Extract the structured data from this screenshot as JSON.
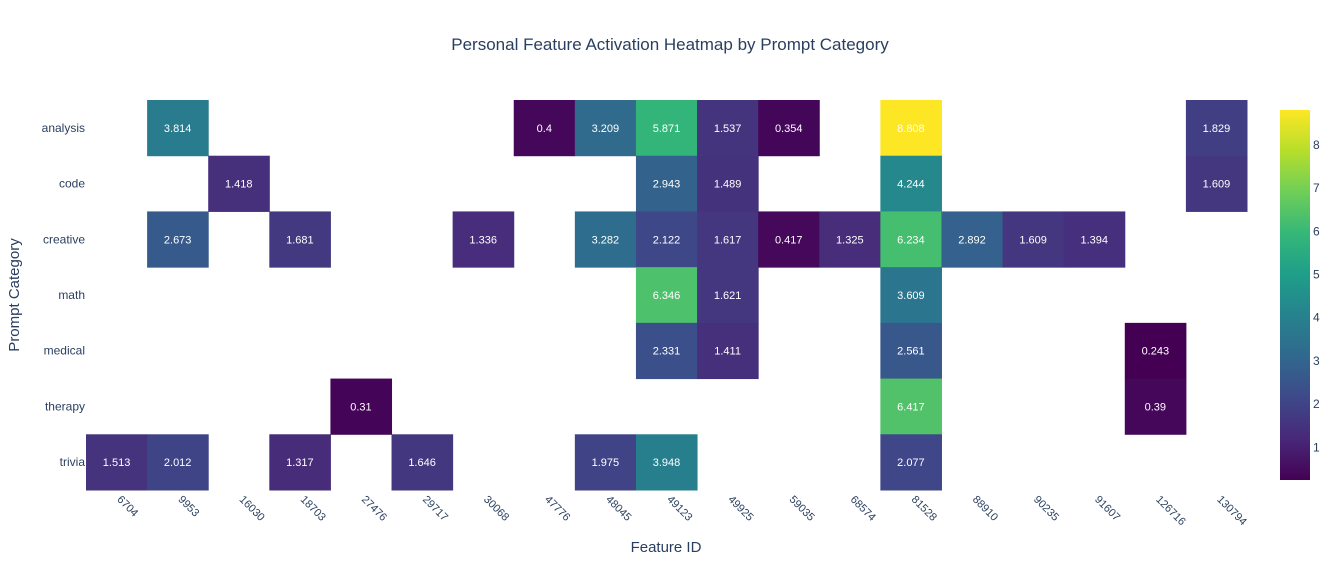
{
  "chart_data": {
    "type": "heatmap",
    "title": "Personal Feature Activation Heatmap by Prompt Category",
    "xlabel": "Feature ID",
    "ylabel": "Prompt Category",
    "x": [
      "6704",
      "9953",
      "16030",
      "18703",
      "27476",
      "29717",
      "30068",
      "47776",
      "48045",
      "49123",
      "49925",
      "59035",
      "68574",
      "81528",
      "88910",
      "90235",
      "91607",
      "126716",
      "130794"
    ],
    "y": [
      "analysis",
      "code",
      "creative",
      "math",
      "medical",
      "therapy",
      "trivia"
    ],
    "colorscale": "Viridis",
    "zmin": 0.243,
    "zmax": 8.808,
    "colorbar_ticks": [
      1,
      2,
      3,
      4,
      5,
      6,
      7,
      8
    ],
    "z": [
      [
        null,
        3.814,
        null,
        null,
        null,
        null,
        null,
        0.4,
        3.209,
        5.871,
        1.537,
        0.354,
        null,
        8.808,
        null,
        null,
        null,
        null,
        1.829
      ],
      [
        null,
        null,
        1.418,
        null,
        null,
        null,
        null,
        null,
        null,
        2.943,
        1.489,
        null,
        null,
        4.244,
        null,
        null,
        null,
        null,
        1.609
      ],
      [
        null,
        2.673,
        null,
        1.681,
        null,
        null,
        1.336,
        null,
        3.282,
        2.122,
        1.617,
        0.417,
        1.325,
        6.234,
        2.892,
        1.609,
        1.394,
        null,
        null
      ],
      [
        null,
        null,
        null,
        null,
        null,
        null,
        null,
        null,
        null,
        6.346,
        1.621,
        null,
        null,
        3.609,
        null,
        null,
        null,
        null,
        null
      ],
      [
        null,
        null,
        null,
        null,
        null,
        null,
        null,
        null,
        null,
        2.331,
        1.411,
        null,
        null,
        2.561,
        null,
        null,
        null,
        0.243,
        null
      ],
      [
        null,
        null,
        null,
        null,
        0.31,
        null,
        null,
        null,
        null,
        null,
        null,
        null,
        null,
        6.417,
        null,
        null,
        null,
        0.39,
        null
      ],
      [
        1.513,
        2.012,
        null,
        1.317,
        null,
        1.646,
        null,
        null,
        1.975,
        3.948,
        null,
        null,
        null,
        2.077,
        null,
        null,
        null,
        null,
        null
      ]
    ]
  }
}
